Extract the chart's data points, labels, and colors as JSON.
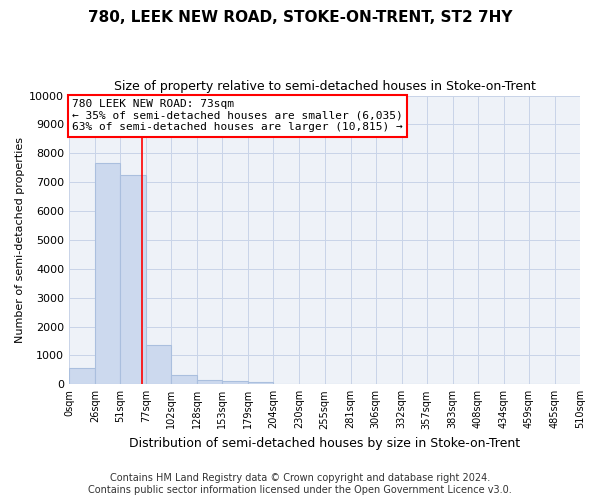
{
  "title": "780, LEEK NEW ROAD, STOKE-ON-TRENT, ST2 7HY",
  "subtitle": "Size of property relative to semi-detached houses in Stoke-on-Trent",
  "xlabel": "Distribution of semi-detached houses by size in Stoke-on-Trent",
  "ylabel": "Number of semi-detached properties",
  "footer_line1": "Contains HM Land Registry data © Crown copyright and database right 2024.",
  "footer_line2": "Contains public sector information licensed under the Open Government Licence v3.0.",
  "bin_edges": [
    0,
    26,
    51,
    77,
    102,
    128,
    153,
    179,
    204,
    230,
    255,
    281,
    306,
    332,
    357,
    383,
    408,
    434,
    459,
    485,
    510
  ],
  "bin_labels": [
    "0sqm",
    "26sqm",
    "51sqm",
    "77sqm",
    "102sqm",
    "128sqm",
    "153sqm",
    "179sqm",
    "204sqm",
    "230sqm",
    "255sqm",
    "281sqm",
    "306sqm",
    "332sqm",
    "357sqm",
    "383sqm",
    "408sqm",
    "434sqm",
    "459sqm",
    "485sqm",
    "510sqm"
  ],
  "bar_values": [
    580,
    7650,
    7250,
    1350,
    320,
    155,
    120,
    85,
    0,
    0,
    0,
    0,
    0,
    0,
    0,
    0,
    0,
    0,
    0,
    0
  ],
  "bar_color": "#ccd9ee",
  "bar_edgecolor": "#aabfde",
  "grid_color": "#c8d4e8",
  "bg_color": "#eef2f8",
  "property_line_x": 73,
  "property_line_label": "780 LEEK NEW ROAD: 73sqm",
  "pct_smaller": 35,
  "count_smaller": 6035,
  "pct_larger": 63,
  "count_larger": 10815,
  "annotation_box_facecolor": "white",
  "annotation_box_edgecolor": "red",
  "property_line_color": "red",
  "ylim": [
    0,
    10000
  ],
  "yticks": [
    0,
    1000,
    2000,
    3000,
    4000,
    5000,
    6000,
    7000,
    8000,
    9000,
    10000
  ],
  "title_fontsize": 11,
  "subtitle_fontsize": 9,
  "xlabel_fontsize": 9,
  "ylabel_fontsize": 8,
  "ytick_fontsize": 8,
  "xtick_fontsize": 7,
  "ann_fontsize": 8,
  "footer_fontsize": 7
}
